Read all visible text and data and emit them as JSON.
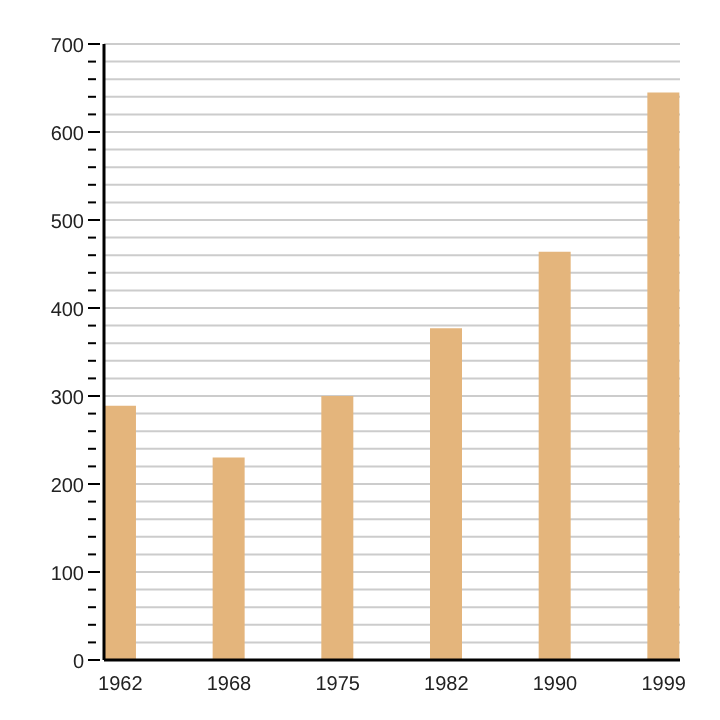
{
  "chart_data": {
    "type": "bar",
    "categories": [
      "1962",
      "1968",
      "1975",
      "1982",
      "1990",
      "1999"
    ],
    "values": [
      289,
      230,
      300,
      377,
      464,
      645
    ],
    "color": "#e4b57c",
    "ylim": [
      0,
      700
    ],
    "yticks": [
      0,
      {
        "value": 20,
        "label": null
      },
      {
        "value": 40,
        "label": null
      },
      {
        "value": 60,
        "label": null
      },
      {
        "value": 80,
        "label": null
      },
      100,
      {
        "value": 120,
        "label": null
      },
      {
        "value": 140,
        "label": null
      },
      {
        "value": 160,
        "label": null
      },
      {
        "value": 180,
        "label": null
      },
      200,
      {
        "value": 220,
        "label": null
      },
      {
        "value": 240,
        "label": null
      },
      {
        "value": 260,
        "label": null
      },
      {
        "value": 280,
        "label": null
      },
      300,
      {
        "value": 320,
        "label": null
      },
      {
        "value": 340,
        "label": null
      },
      {
        "value": 360,
        "label": null
      },
      {
        "value": 380,
        "label": null
      },
      400,
      {
        "value": 420,
        "label": null
      },
      {
        "value": 440,
        "label": null
      },
      {
        "value": 460,
        "label": null
      },
      {
        "value": 480,
        "label": null
      },
      500,
      {
        "value": 520,
        "label": null
      },
      {
        "value": 540,
        "label": null
      },
      {
        "value": 560,
        "label": null
      },
      {
        "value": 580,
        "label": null
      },
      600,
      {
        "value": 620,
        "label": null
      },
      {
        "value": 640,
        "label": null
      },
      {
        "value": 660,
        "label": null
      },
      {
        "value": 680,
        "label": null
      },
      700
    ],
    "grid": "y"
  }
}
